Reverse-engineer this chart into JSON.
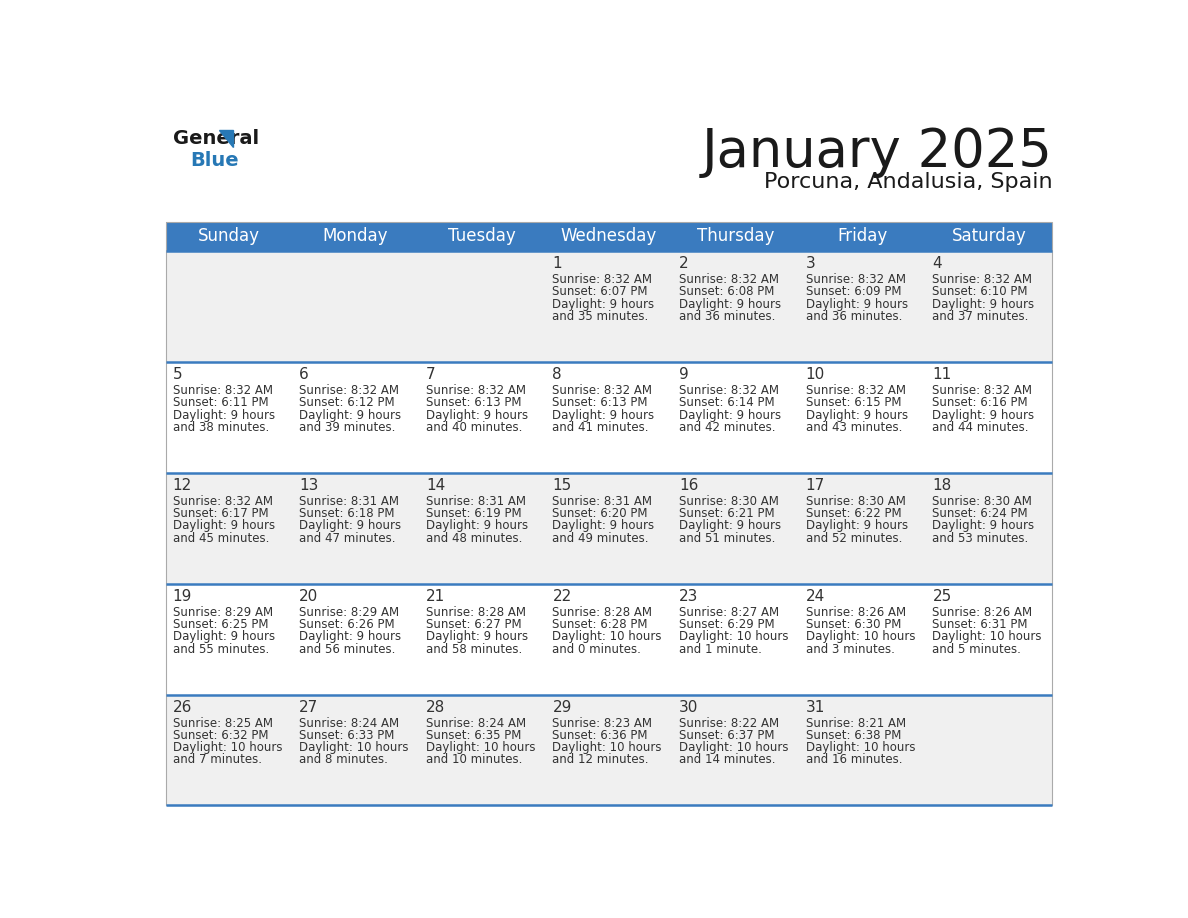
{
  "title": "January 2025",
  "subtitle": "Porcuna, Andalusia, Spain",
  "header_bg": "#3a7bbf",
  "header_text": "#ffffff",
  "row_bg_odd": "#f0f0f0",
  "row_bg_even": "#ffffff",
  "day_names": [
    "Sunday",
    "Monday",
    "Tuesday",
    "Wednesday",
    "Thursday",
    "Friday",
    "Saturday"
  ],
  "days": [
    {
      "day": 1,
      "col": 3,
      "row": 0,
      "sunrise": "8:32 AM",
      "sunset": "6:07 PM",
      "daylight_line1": "Daylight: 9 hours",
      "daylight_line2": "and 35 minutes."
    },
    {
      "day": 2,
      "col": 4,
      "row": 0,
      "sunrise": "8:32 AM",
      "sunset": "6:08 PM",
      "daylight_line1": "Daylight: 9 hours",
      "daylight_line2": "and 36 minutes."
    },
    {
      "day": 3,
      "col": 5,
      "row": 0,
      "sunrise": "8:32 AM",
      "sunset": "6:09 PM",
      "daylight_line1": "Daylight: 9 hours",
      "daylight_line2": "and 36 minutes."
    },
    {
      "day": 4,
      "col": 6,
      "row": 0,
      "sunrise": "8:32 AM",
      "sunset": "6:10 PM",
      "daylight_line1": "Daylight: 9 hours",
      "daylight_line2": "and 37 minutes."
    },
    {
      "day": 5,
      "col": 0,
      "row": 1,
      "sunrise": "8:32 AM",
      "sunset": "6:11 PM",
      "daylight_line1": "Daylight: 9 hours",
      "daylight_line2": "and 38 minutes."
    },
    {
      "day": 6,
      "col": 1,
      "row": 1,
      "sunrise": "8:32 AM",
      "sunset": "6:12 PM",
      "daylight_line1": "Daylight: 9 hours",
      "daylight_line2": "and 39 minutes."
    },
    {
      "day": 7,
      "col": 2,
      "row": 1,
      "sunrise": "8:32 AM",
      "sunset": "6:13 PM",
      "daylight_line1": "Daylight: 9 hours",
      "daylight_line2": "and 40 minutes."
    },
    {
      "day": 8,
      "col": 3,
      "row": 1,
      "sunrise": "8:32 AM",
      "sunset": "6:13 PM",
      "daylight_line1": "Daylight: 9 hours",
      "daylight_line2": "and 41 minutes."
    },
    {
      "day": 9,
      "col": 4,
      "row": 1,
      "sunrise": "8:32 AM",
      "sunset": "6:14 PM",
      "daylight_line1": "Daylight: 9 hours",
      "daylight_line2": "and 42 minutes."
    },
    {
      "day": 10,
      "col": 5,
      "row": 1,
      "sunrise": "8:32 AM",
      "sunset": "6:15 PM",
      "daylight_line1": "Daylight: 9 hours",
      "daylight_line2": "and 43 minutes."
    },
    {
      "day": 11,
      "col": 6,
      "row": 1,
      "sunrise": "8:32 AM",
      "sunset": "6:16 PM",
      "daylight_line1": "Daylight: 9 hours",
      "daylight_line2": "and 44 minutes."
    },
    {
      "day": 12,
      "col": 0,
      "row": 2,
      "sunrise": "8:32 AM",
      "sunset": "6:17 PM",
      "daylight_line1": "Daylight: 9 hours",
      "daylight_line2": "and 45 minutes."
    },
    {
      "day": 13,
      "col": 1,
      "row": 2,
      "sunrise": "8:31 AM",
      "sunset": "6:18 PM",
      "daylight_line1": "Daylight: 9 hours",
      "daylight_line2": "and 47 minutes."
    },
    {
      "day": 14,
      "col": 2,
      "row": 2,
      "sunrise": "8:31 AM",
      "sunset": "6:19 PM",
      "daylight_line1": "Daylight: 9 hours",
      "daylight_line2": "and 48 minutes."
    },
    {
      "day": 15,
      "col": 3,
      "row": 2,
      "sunrise": "8:31 AM",
      "sunset": "6:20 PM",
      "daylight_line1": "Daylight: 9 hours",
      "daylight_line2": "and 49 minutes."
    },
    {
      "day": 16,
      "col": 4,
      "row": 2,
      "sunrise": "8:30 AM",
      "sunset": "6:21 PM",
      "daylight_line1": "Daylight: 9 hours",
      "daylight_line2": "and 51 minutes."
    },
    {
      "day": 17,
      "col": 5,
      "row": 2,
      "sunrise": "8:30 AM",
      "sunset": "6:22 PM",
      "daylight_line1": "Daylight: 9 hours",
      "daylight_line2": "and 52 minutes."
    },
    {
      "day": 18,
      "col": 6,
      "row": 2,
      "sunrise": "8:30 AM",
      "sunset": "6:24 PM",
      "daylight_line1": "Daylight: 9 hours",
      "daylight_line2": "and 53 minutes."
    },
    {
      "day": 19,
      "col": 0,
      "row": 3,
      "sunrise": "8:29 AM",
      "sunset": "6:25 PM",
      "daylight_line1": "Daylight: 9 hours",
      "daylight_line2": "and 55 minutes."
    },
    {
      "day": 20,
      "col": 1,
      "row": 3,
      "sunrise": "8:29 AM",
      "sunset": "6:26 PM",
      "daylight_line1": "Daylight: 9 hours",
      "daylight_line2": "and 56 minutes."
    },
    {
      "day": 21,
      "col": 2,
      "row": 3,
      "sunrise": "8:28 AM",
      "sunset": "6:27 PM",
      "daylight_line1": "Daylight: 9 hours",
      "daylight_line2": "and 58 minutes."
    },
    {
      "day": 22,
      "col": 3,
      "row": 3,
      "sunrise": "8:28 AM",
      "sunset": "6:28 PM",
      "daylight_line1": "Daylight: 10 hours",
      "daylight_line2": "and 0 minutes."
    },
    {
      "day": 23,
      "col": 4,
      "row": 3,
      "sunrise": "8:27 AM",
      "sunset": "6:29 PM",
      "daylight_line1": "Daylight: 10 hours",
      "daylight_line2": "and 1 minute."
    },
    {
      "day": 24,
      "col": 5,
      "row": 3,
      "sunrise": "8:26 AM",
      "sunset": "6:30 PM",
      "daylight_line1": "Daylight: 10 hours",
      "daylight_line2": "and 3 minutes."
    },
    {
      "day": 25,
      "col": 6,
      "row": 3,
      "sunrise": "8:26 AM",
      "sunset": "6:31 PM",
      "daylight_line1": "Daylight: 10 hours",
      "daylight_line2": "and 5 minutes."
    },
    {
      "day": 26,
      "col": 0,
      "row": 4,
      "sunrise": "8:25 AM",
      "sunset": "6:32 PM",
      "daylight_line1": "Daylight: 10 hours",
      "daylight_line2": "and 7 minutes."
    },
    {
      "day": 27,
      "col": 1,
      "row": 4,
      "sunrise": "8:24 AM",
      "sunset": "6:33 PM",
      "daylight_line1": "Daylight: 10 hours",
      "daylight_line2": "and 8 minutes."
    },
    {
      "day": 28,
      "col": 2,
      "row": 4,
      "sunrise": "8:24 AM",
      "sunset": "6:35 PM",
      "daylight_line1": "Daylight: 10 hours",
      "daylight_line2": "and 10 minutes."
    },
    {
      "day": 29,
      "col": 3,
      "row": 4,
      "sunrise": "8:23 AM",
      "sunset": "6:36 PM",
      "daylight_line1": "Daylight: 10 hours",
      "daylight_line2": "and 12 minutes."
    },
    {
      "day": 30,
      "col": 4,
      "row": 4,
      "sunrise": "8:22 AM",
      "sunset": "6:37 PM",
      "daylight_line1": "Daylight: 10 hours",
      "daylight_line2": "and 14 minutes."
    },
    {
      "day": 31,
      "col": 5,
      "row": 4,
      "sunrise": "8:21 AM",
      "sunset": "6:38 PM",
      "daylight_line1": "Daylight: 10 hours",
      "daylight_line2": "and 16 minutes."
    }
  ],
  "num_rows": 5,
  "num_cols": 7,
  "header_text_color": "#ffffff",
  "divider_color": "#3a7bbf",
  "divider_linewidth": 1.8,
  "cell_text_color": "#333333",
  "cell_text_small_size": 8.5,
  "cell_day_num_size": 11,
  "header_text_size": 12,
  "title_fontsize": 38,
  "subtitle_fontsize": 16
}
